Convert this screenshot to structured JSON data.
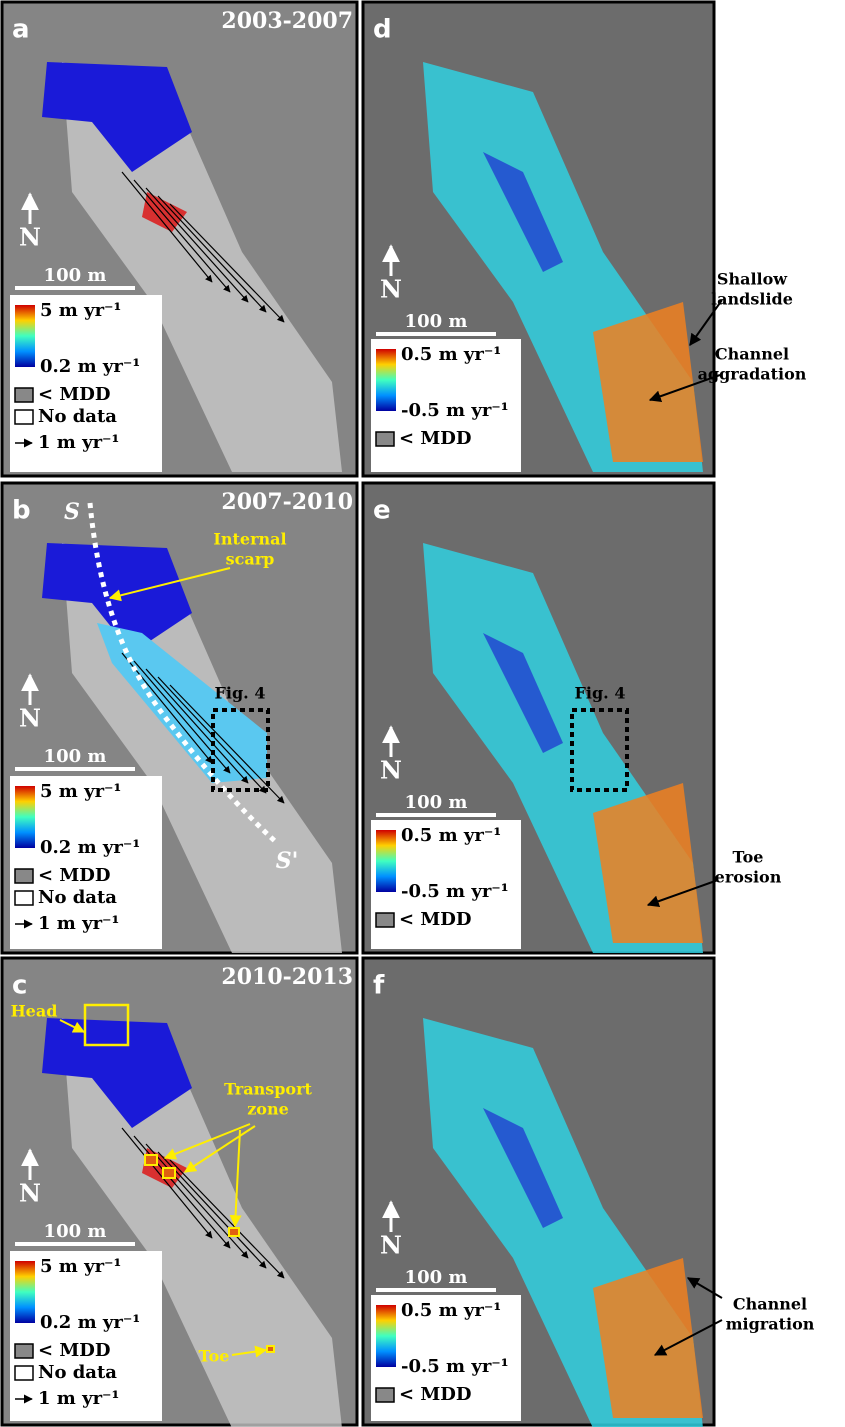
{
  "panels": [
    {
      "letter": "a",
      "period": "2003-2007",
      "north": "N",
      "scale": "100 m",
      "legend": {
        "max": "5 m yr⁻¹",
        "min": "0.2 m yr⁻¹",
        "mdd": "< MDD",
        "nodata": "No data",
        "arrow": "1 m yr⁻¹"
      }
    },
    {
      "letter": "b",
      "period": "2007-2010",
      "north": "N",
      "scale": "100 m",
      "legend": {
        "max": "5 m yr⁻¹",
        "min": "0.2 m yr⁻¹",
        "mdd": "< MDD",
        "nodata": "No data",
        "arrow": "1 m yr⁻¹"
      },
      "annotations": [
        {
          "lines": [
            "Internal",
            "scarp"
          ]
        },
        {
          "lines": [
            "Fig. 4"
          ]
        },
        {
          "lines": [
            "S"
          ]
        },
        {
          "lines": [
            "S'"
          ]
        }
      ]
    },
    {
      "letter": "c",
      "period": "2010-2013",
      "north": "N",
      "scale": "100 m",
      "legend": {
        "max": "5 m yr⁻¹",
        "min": "0.2 m yr⁻¹",
        "mdd": "< MDD",
        "nodata": "No data",
        "arrow": "1 m yr⁻¹"
      },
      "annotations": [
        {
          "lines": [
            "Head"
          ]
        },
        {
          "lines": [
            "Transport",
            "zone"
          ]
        },
        {
          "lines": [
            "Toe"
          ]
        }
      ]
    },
    {
      "letter": "d",
      "north": "N",
      "scale": "100 m",
      "legend": {
        "max": "0.5 m yr⁻¹",
        "min": "-0.5 m yr⁻¹",
        "mdd": "< MDD"
      },
      "annotations": [
        {
          "lines": [
            "Shallow",
            "landslide"
          ]
        },
        {
          "lines": [
            "Channel",
            "aggradation"
          ]
        }
      ]
    },
    {
      "letter": "e",
      "north": "N",
      "scale": "100 m",
      "legend": {
        "max": "0.5 m yr⁻¹",
        "min": "-0.5 m yr⁻¹",
        "mdd": "< MDD"
      },
      "annotations": [
        {
          "lines": [
            "Fig. 4"
          ]
        },
        {
          "lines": [
            "Toe",
            "erosion"
          ]
        }
      ]
    },
    {
      "letter": "f",
      "north": "N",
      "scale": "100 m",
      "legend": {
        "max": "0.5 m yr⁻¹",
        "min": "-0.5 m yr⁻¹",
        "mdd": "< MDD"
      },
      "annotations": [
        {
          "lines": [
            "Channel",
            "migration"
          ]
        }
      ]
    }
  ]
}
